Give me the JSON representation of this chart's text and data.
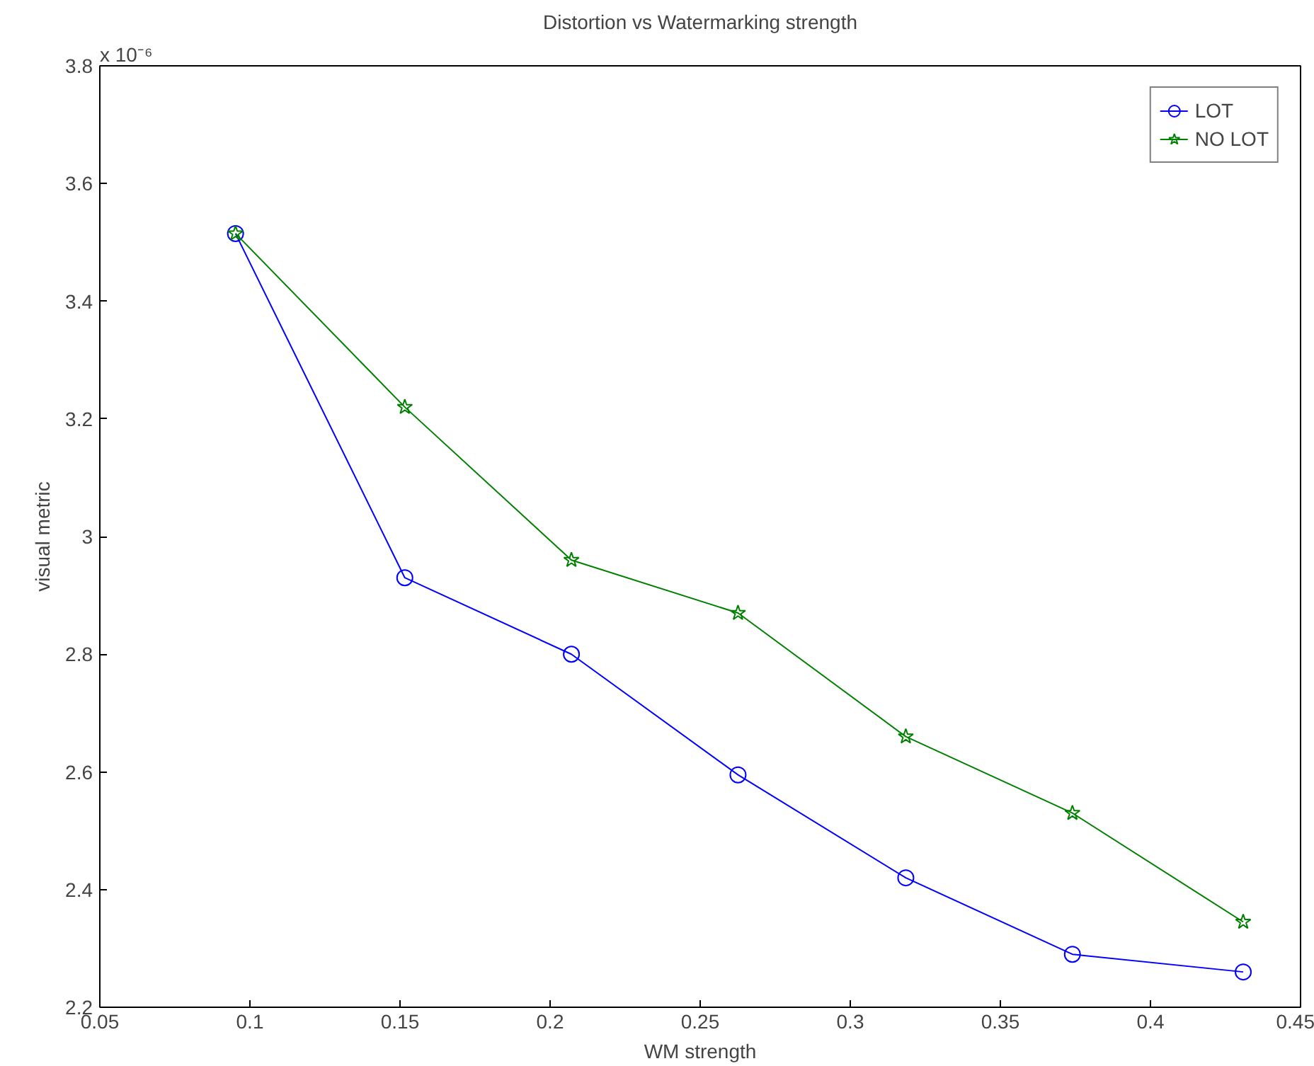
{
  "chart_data": {
    "type": "line",
    "title": "Distortion vs Watermarking strength",
    "xlabel": "WM strength",
    "ylabel": "visual metric",
    "annotations": [
      "x 10⁻⁶"
    ],
    "x": [
      0.0952,
      0.1516,
      0.2071,
      0.2626,
      0.3185,
      0.374,
      0.4309
    ],
    "series": [
      {
        "name": "LOT",
        "color": "#0000ff",
        "marker": "circle",
        "values": [
          3.515,
          2.93,
          2.8,
          2.595,
          2.42,
          2.29,
          2.26
        ]
      },
      {
        "name": "NO LOT",
        "color": "#008000",
        "marker": "star",
        "values": [
          3.515,
          3.22,
          2.96,
          2.87,
          2.66,
          2.53,
          2.345
        ]
      }
    ],
    "xlim": [
      0.05,
      0.45
    ],
    "xticks": [
      0.05,
      0.1,
      0.15,
      0.2,
      0.25,
      0.3,
      0.35,
      0.4,
      0.45
    ],
    "ylim": [
      2.2,
      3.8
    ],
    "yticks": [
      2.2,
      2.4,
      2.6,
      2.8,
      3,
      3.2,
      3.4,
      3.6,
      3.8
    ],
    "grid": false,
    "legend": "top right",
    "line_style": "solid"
  }
}
